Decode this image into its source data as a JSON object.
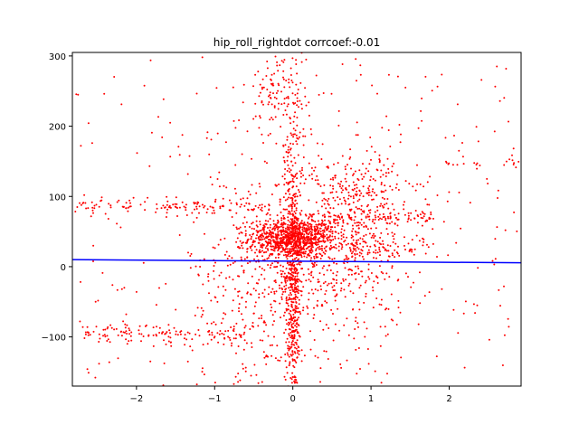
{
  "chart_data": {
    "type": "scatter",
    "title": "hip_roll_rightdot corrcoef:-0.01",
    "xlabel": "",
    "ylabel": "",
    "xlim": [
      -2.82,
      2.92
    ],
    "ylim": [
      -170,
      305
    ],
    "xticks": [
      -2,
      -1,
      0,
      1,
      2
    ],
    "xtick_labels": [
      "−2",
      "−1",
      "0",
      "1",
      "2"
    ],
    "yticks": [
      -100,
      0,
      100,
      200,
      300
    ],
    "ytick_labels": [
      "−100",
      "0",
      "100",
      "200",
      "300"
    ],
    "grid": false,
    "colors": {
      "points": "#ff0000",
      "fit_line": "#0000ff",
      "axes": "#000000"
    },
    "scatter_clusters": [
      {
        "shape": "blob",
        "cx": 0.0,
        "cy": 40,
        "sx": 0.28,
        "sy": 14,
        "n": 900
      },
      {
        "shape": "blob",
        "cx": 0.0,
        "cy": -20,
        "sx": 0.05,
        "sy": 90,
        "n": 500
      },
      {
        "shape": "blob",
        "cx": 0.55,
        "cy": 20,
        "sx": 0.45,
        "sy": 70,
        "n": 500
      },
      {
        "shape": "blob",
        "cx": -0.45,
        "cy": -30,
        "sx": 0.45,
        "sy": 80,
        "n": 350
      },
      {
        "shape": "blob",
        "cx": 0.9,
        "cy": 100,
        "sx": 0.35,
        "sy": 35,
        "n": 200
      },
      {
        "shape": "blob",
        "cx": -0.3,
        "cy": 250,
        "sx": 0.15,
        "sy": 25,
        "n": 70
      },
      {
        "shape": "blob",
        "cx": 0.0,
        "cy": 200,
        "sx": 0.15,
        "sy": 60,
        "n": 120
      },
      {
        "shape": "uniform",
        "x": [
          -2.8,
          2.9
        ],
        "y": [
          -165,
          300
        ],
        "n": 260
      },
      {
        "shape": "band",
        "x": [
          -2.8,
          -0.3
        ],
        "yc": 85,
        "yspread": 6,
        "n": 130
      },
      {
        "shape": "band",
        "x": [
          -2.7,
          -0.6
        ],
        "yc": -95,
        "yspread": 6,
        "n": 120
      },
      {
        "shape": "band",
        "x": [
          0.4,
          1.8
        ],
        "yc": 70,
        "yspread": 5,
        "n": 80
      },
      {
        "shape": "band",
        "x": [
          1.9,
          2.9
        ],
        "yc": 148,
        "yspread": 4,
        "n": 20
      },
      {
        "shape": "band",
        "x": [
          0.5,
          1.8
        ],
        "yc": 25,
        "yspread": 6,
        "n": 70
      }
    ],
    "fit_line": {
      "x": [
        -2.82,
        2.92
      ],
      "y": [
        10.0,
        5.5
      ]
    }
  }
}
